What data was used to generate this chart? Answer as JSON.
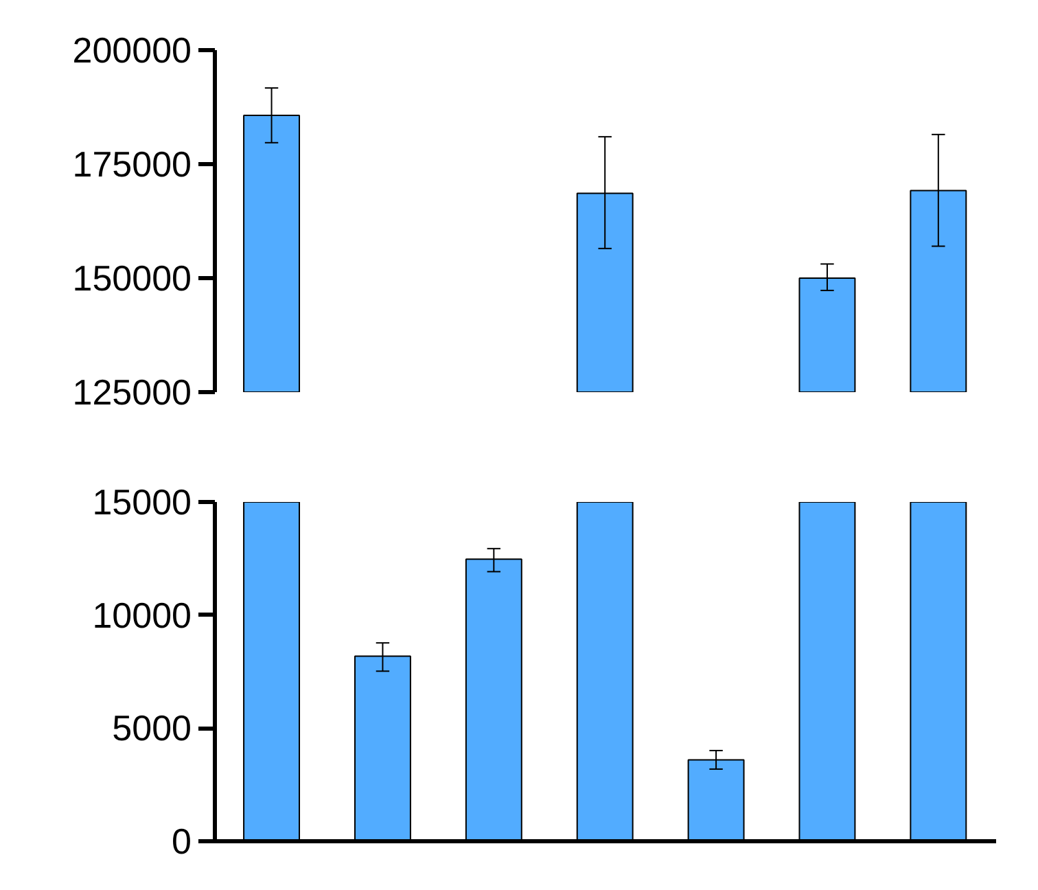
{
  "chart_data": [
    {
      "type": "bar",
      "categories": [
        null,
        null,
        null,
        null,
        null,
        null,
        null
      ],
      "values": [
        185700,
        null,
        null,
        168600,
        null,
        150000,
        169200
      ],
      "errors": [
        [
          179700,
          191700
        ],
        null,
        null,
        [
          156500,
          181000
        ],
        null,
        [
          147300,
          153100
        ],
        [
          157000,
          181500
        ]
      ],
      "color": "#52acff",
      "ylim": [
        125000,
        200000
      ],
      "yticks": [
        125000,
        150000,
        175000,
        200000
      ],
      "tick_labels": "y"
    },
    {
      "type": "bar",
      "categories": [
        null,
        null,
        null,
        null,
        null,
        null,
        null
      ],
      "values": [
        15000,
        8180,
        12470,
        15000,
        3600,
        15000,
        15000
      ],
      "errors": [
        null,
        [
          7520,
          8770
        ],
        [
          11920,
          12940
        ],
        null,
        [
          3190,
          4010
        ],
        null,
        null
      ],
      "color": "#52acff",
      "ylim": [
        0,
        15000
      ],
      "yticks": [
        0,
        5000,
        10000,
        15000
      ],
      "tick_labels": "y"
    }
  ]
}
